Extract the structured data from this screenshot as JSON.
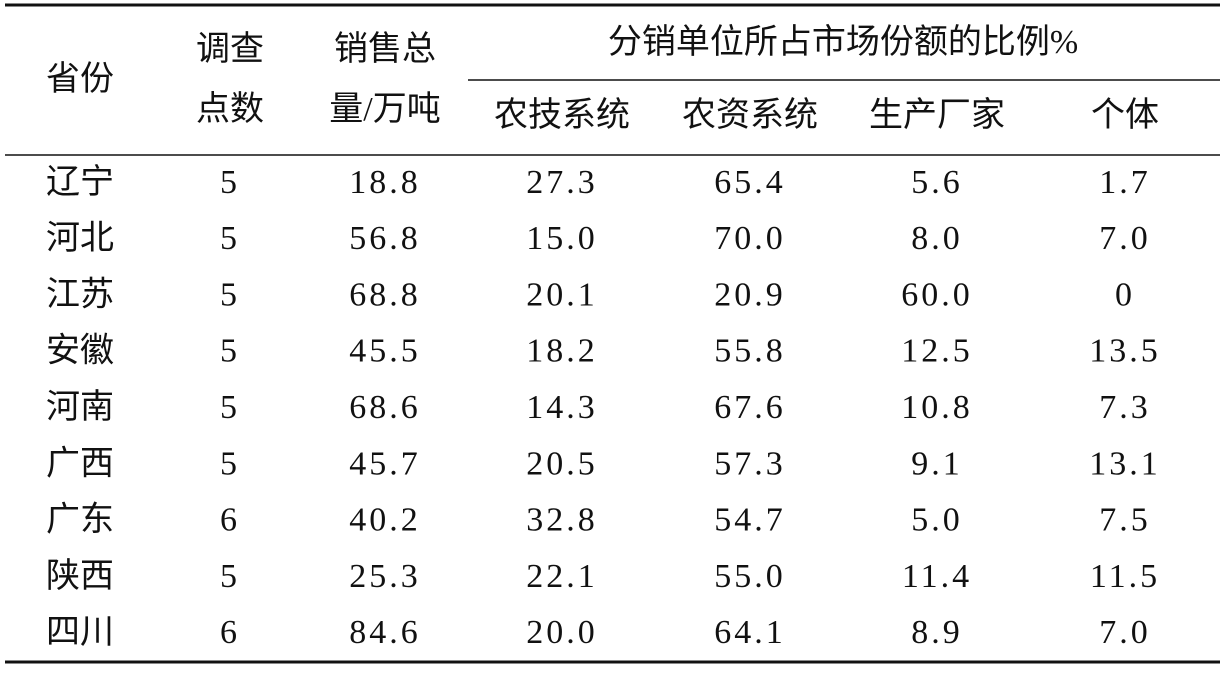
{
  "table": {
    "header": {
      "province": "省份",
      "points": [
        "调查",
        "点数"
      ],
      "sales": [
        "销售总",
        "量/万吨"
      ],
      "group": "分销单位所占市场份额的比例%",
      "subcolumns": [
        "农技系统",
        "农资系统",
        "生产厂家",
        "个体"
      ]
    },
    "rows": [
      [
        "辽宁",
        "5",
        "18.8",
        "27.3",
        "65.4",
        "5.6",
        "1.7"
      ],
      [
        "河北",
        "5",
        "56.8",
        "15.0",
        "70.0",
        "8.0",
        "7.0"
      ],
      [
        "江苏",
        "5",
        "68.8",
        "20.1",
        "20.9",
        "60.0",
        "0"
      ],
      [
        "安徽",
        "5",
        "45.5",
        "18.2",
        "55.8",
        "12.5",
        "13.5"
      ],
      [
        "河南",
        "5",
        "68.6",
        "14.3",
        "67.6",
        "10.8",
        "7.3"
      ],
      [
        "广西",
        "5",
        "45.7",
        "20.5",
        "57.3",
        "9.1",
        "13.1"
      ],
      [
        "广东",
        "6",
        "40.2",
        "32.8",
        "54.7",
        "5.0",
        "7.5"
      ],
      [
        "陕西",
        "5",
        "25.3",
        "22.1",
        "55.0",
        "11.4",
        "11.5"
      ],
      [
        "四川",
        "6",
        "84.6",
        "20.0",
        "64.1",
        "8.9",
        "7.0"
      ]
    ]
  }
}
